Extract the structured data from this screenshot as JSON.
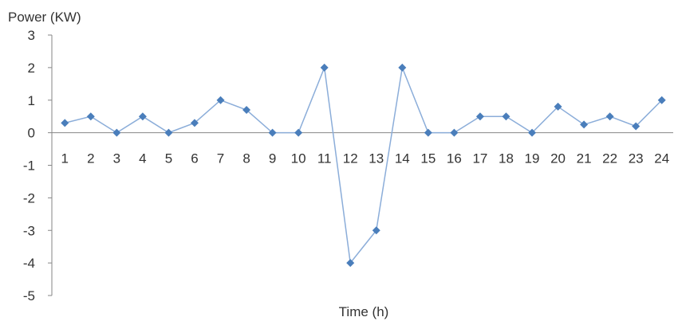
{
  "chart_data": {
    "type": "line",
    "title": "",
    "ylabel": "Power (KW)",
    "xlabel": "Time (h)",
    "ylim": [
      -5,
      3
    ],
    "yticks": [
      3,
      2,
      1,
      0,
      -1,
      -2,
      -3,
      -4,
      -5
    ],
    "grid": false,
    "legend": "none",
    "marker": "diamond",
    "line_color": "#8BADD9",
    "marker_color": "#4A7EBB",
    "x": [
      "1",
      "2",
      "3",
      "4",
      "5",
      "6",
      "7",
      "8",
      "9",
      "10",
      "11",
      "12",
      "13",
      "14",
      "15",
      "16",
      "17",
      "18",
      "19",
      "20",
      "21",
      "22",
      "23",
      "24"
    ],
    "series": [
      {
        "values": [
          0.3,
          0.5,
          0,
          0.5,
          0,
          0.3,
          1,
          0.7,
          0,
          0,
          2,
          -4,
          -3,
          2,
          0,
          0,
          0.5,
          0.5,
          0,
          0.8,
          0.25,
          0.5,
          0.2,
          1
        ]
      }
    ]
  }
}
